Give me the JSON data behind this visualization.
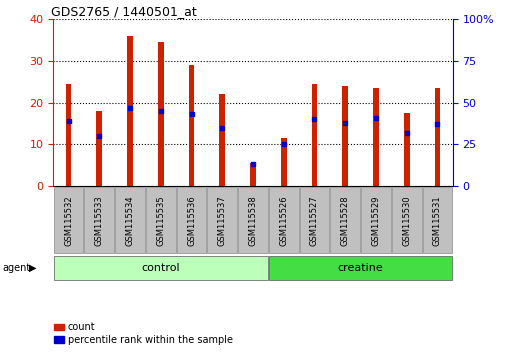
{
  "title": "GDS2765 / 1440501_at",
  "samples": [
    "GSM115532",
    "GSM115533",
    "GSM115534",
    "GSM115535",
    "GSM115536",
    "GSM115537",
    "GSM115538",
    "GSM115526",
    "GSM115527",
    "GSM115528",
    "GSM115529",
    "GSM115530",
    "GSM115531"
  ],
  "counts": [
    24.5,
    18.0,
    36.0,
    34.5,
    29.0,
    22.0,
    5.5,
    11.5,
    24.5,
    24.0,
    23.5,
    17.5,
    23.5
  ],
  "percentiles": [
    39,
    30,
    47,
    45,
    43,
    35,
    13,
    25,
    40,
    38,
    41,
    32,
    37
  ],
  "bar_color": "#cc2200",
  "dot_color": "#0000cc",
  "left_ylim": [
    0,
    40
  ],
  "right_ylim": [
    0,
    100
  ],
  "left_yticks": [
    0,
    10,
    20,
    30,
    40
  ],
  "right_yticks": [
    0,
    25,
    50,
    75,
    100
  ],
  "right_yticklabels": [
    "0",
    "25",
    "50",
    "75",
    "100%"
  ],
  "control_label": "control",
  "creatine_label": "creatine",
  "agent_label": "agent",
  "legend_count": "count",
  "legend_percentile": "percentile rank within the sample",
  "control_color": "#bbffbb",
  "creatine_color": "#44dd44",
  "group_bar_color": "#c0c0c0",
  "n_control": 7,
  "n_creatine": 6,
  "bar_width": 0.18
}
